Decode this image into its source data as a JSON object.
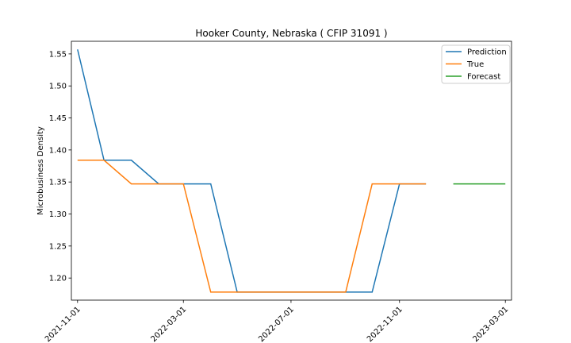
{
  "chart_data": {
    "type": "line",
    "title": "Hooker County, Nebraska ( CFIP 31091 )",
    "xlabel": "",
    "ylabel": "Microbusiness Density",
    "x_type": "date",
    "xlim": [
      "2021-10-25",
      "2023-03-08"
    ],
    "ylim": [
      1.1655,
      1.5697
    ],
    "x_ticks": [
      "2021-11-01",
      "2022-03-01",
      "2022-07-01",
      "2022-11-01",
      "2023-03-01"
    ],
    "y_ticks": [
      1.2,
      1.25,
      1.3,
      1.35,
      1.4,
      1.45,
      1.5,
      1.55
    ],
    "y_tick_labels": [
      "1.20",
      "1.25",
      "1.30",
      "1.35",
      "1.40",
      "1.45",
      "1.50",
      "1.55"
    ],
    "grid": false,
    "legend_position": "top-right",
    "series": [
      {
        "name": "Prediction",
        "color": "#1f77b4",
        "x": [
          "2021-11-01",
          "2021-12-01",
          "2022-01-01",
          "2022-02-01",
          "2022-03-01",
          "2022-04-01",
          "2022-05-01",
          "2022-06-01",
          "2022-07-01",
          "2022-08-01",
          "2022-09-01",
          "2022-10-01",
          "2022-11-01",
          "2022-12-01"
        ],
        "y": [
          1.557,
          1.384,
          1.384,
          1.347,
          1.347,
          1.347,
          1.178,
          1.178,
          1.178,
          1.178,
          1.178,
          1.178,
          1.347,
          1.347
        ]
      },
      {
        "name": "True",
        "color": "#ff7f0e",
        "x": [
          "2021-11-01",
          "2021-12-01",
          "2022-01-01",
          "2022-02-01",
          "2022-03-01",
          "2022-04-01",
          "2022-05-01",
          "2022-06-01",
          "2022-07-01",
          "2022-08-01",
          "2022-09-01",
          "2022-10-01",
          "2022-11-01",
          "2022-12-01"
        ],
        "y": [
          1.384,
          1.384,
          1.347,
          1.347,
          1.347,
          1.178,
          1.178,
          1.178,
          1.178,
          1.178,
          1.178,
          1.347,
          1.347,
          1.347
        ]
      },
      {
        "name": "Forecast",
        "color": "#2ca02c",
        "x": [
          "2023-01-01",
          "2023-02-01",
          "2023-03-01"
        ],
        "y": [
          1.347,
          1.347,
          1.347
        ]
      }
    ]
  }
}
